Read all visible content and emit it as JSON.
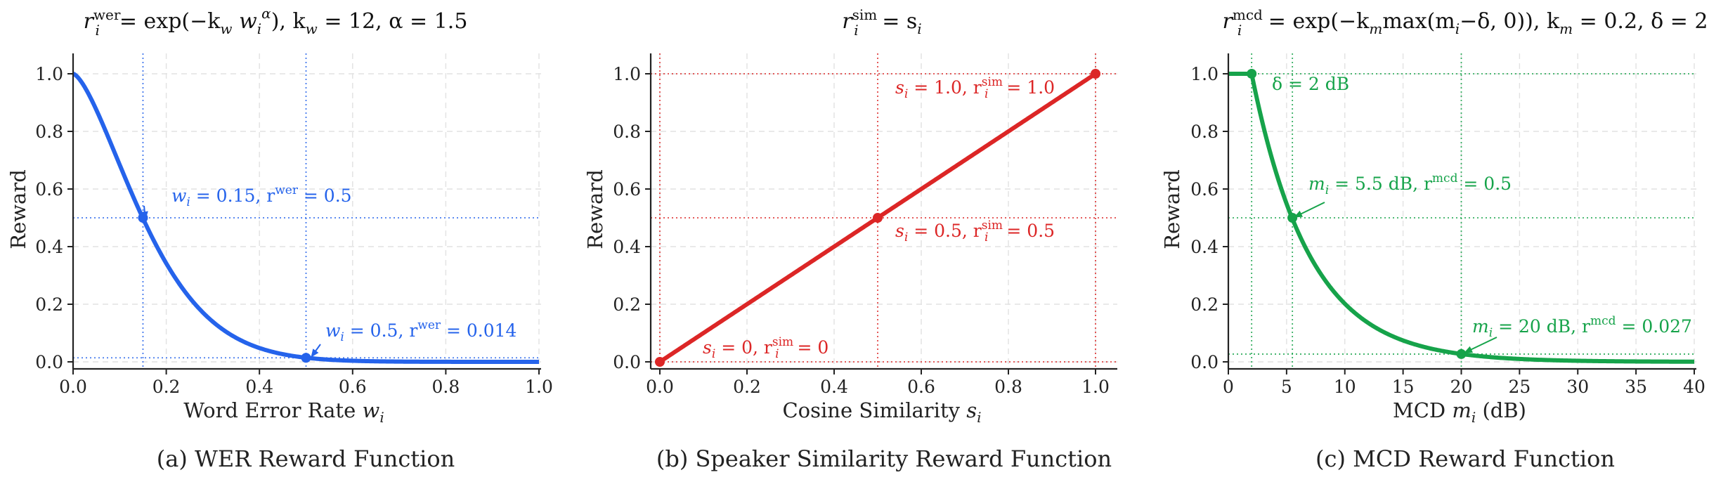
{
  "chart_data": [
    {
      "type": "line",
      "title": "r_i^wer = exp(−k_w w_i^α),  k_w = 12,  α = 1.5",
      "title_parts": {
        "lhs": "r",
        "lhs_sub": "i",
        "lhs_sup": "wer",
        "rhs": "= exp(−k",
        "k_sub": "w",
        "var": " w",
        "var_sub": "i",
        "exp_sup": "α",
        "params": "),  k",
        "params_sub": "w",
        "params_tail": " = 12,  α = 1.5"
      },
      "caption": "(a) WER Reward Function",
      "xlabel": "Word Error Rate",
      "xlabel_var": "w",
      "xlabel_sub": "i",
      "ylabel": "Reward",
      "xlim": [
        0,
        1.0
      ],
      "ylim": [
        0,
        1.0
      ],
      "xticks": [
        "0.0",
        "0.2",
        "0.4",
        "0.6",
        "0.8",
        "1.0"
      ],
      "yticks": [
        "0.0",
        "0.2",
        "0.4",
        "0.6",
        "0.8",
        "1.0"
      ],
      "color": "#2563eb",
      "function": {
        "form": "exp_power",
        "k": 12,
        "alpha": 1.5
      },
      "points": [
        {
          "x": 0.15,
          "y": 0.5,
          "label_a": "w",
          "label_a_sub": "i",
          "label_b": " = 0.15,  r",
          "label_b_sup": "wer",
          "label_c": " = 0.5"
        },
        {
          "x": 0.5,
          "y": 0.014,
          "label_a": "w",
          "label_a_sub": "i",
          "label_b": " = 0.5,  r",
          "label_b_sup": "wer",
          "label_c": " = 0.014"
        }
      ],
      "grid": true
    },
    {
      "type": "line",
      "title": "r_i^sim = s_i",
      "title_parts": {
        "lhs": "r",
        "lhs_sub": "i",
        "lhs_sup": "sim",
        "rhs": " = s",
        "rhs_sub": "i"
      },
      "caption": "(b) Speaker Similarity Reward Function",
      "xlabel": "Cosine Similarity",
      "xlabel_var": "s",
      "xlabel_sub": "i",
      "ylabel": "Reward",
      "xlim": [
        0,
        1.0
      ],
      "ylim": [
        0,
        1.0
      ],
      "xticks": [
        "0.0",
        "0.2",
        "0.4",
        "0.6",
        "0.8",
        "1.0"
      ],
      "yticks": [
        "0.0",
        "0.2",
        "0.4",
        "0.6",
        "0.8",
        "1.0"
      ],
      "color": "#dc2626",
      "function": {
        "form": "identity"
      },
      "points": [
        {
          "x": 0,
          "y": 0,
          "label_a": "s",
          "label_a_sub": "i",
          "label_b": " = 0,  r",
          "label_b_sup": "sim",
          "label_b_sub": "i",
          "label_c": " = 0"
        },
        {
          "x": 0.5,
          "y": 0.5,
          "label_a": "s",
          "label_a_sub": "i",
          "label_b": " = 0.5,  r",
          "label_b_sup": "sim",
          "label_b_sub": "i",
          "label_c": " = 0.5"
        },
        {
          "x": 1.0,
          "y": 1.0,
          "label_a": "s",
          "label_a_sub": "i",
          "label_b": " = 1.0,  r",
          "label_b_sup": "sim",
          "label_b_sub": "i",
          "label_c": " = 1.0"
        }
      ],
      "grid": true
    },
    {
      "type": "line",
      "title": "r_i^mcd = exp(−k_m max(m_i − δ, 0)),  k_m = 0.2,  δ = 2",
      "title_parts": {
        "lhs": "r",
        "lhs_sub": "i",
        "lhs_sup": "mcd",
        "rhs": " = exp(−k",
        "k_sub": "m",
        "mid": "max(m",
        "mid_sub": "i",
        "tail": "−δ, 0)),  k",
        "tail_sub": "m",
        "params_tail": " = 0.2,  δ = 2"
      },
      "caption": "(c) MCD Reward Function",
      "xlabel": "MCD",
      "xlabel_var": "m",
      "xlabel_sub": "i",
      "xlabel_unit": " (dB)",
      "ylabel": "Reward",
      "xlim": [
        0,
        40
      ],
      "ylim": [
        0,
        1.0
      ],
      "xticks": [
        "0",
        "5",
        "10",
        "15",
        "20",
        "25",
        "30",
        "35",
        "40"
      ],
      "yticks": [
        "0.0",
        "0.2",
        "0.4",
        "0.6",
        "0.8",
        "1.0"
      ],
      "color": "#16a34a",
      "function": {
        "form": "exp_hinge",
        "k": 0.2,
        "delta": 2
      },
      "points": [
        {
          "x": 2,
          "y": 1.0,
          "label_a": "δ = 2 dB"
        },
        {
          "x": 5.5,
          "y": 0.5,
          "label_a": "m",
          "label_a_sub": "i",
          "label_b": " = 5.5 dB,  r",
          "label_b_sup": "mcd",
          "label_c": " = 0.5"
        },
        {
          "x": 20,
          "y": 0.027,
          "label_a": "m",
          "label_a_sub": "i",
          "label_b": " = 20 dB,  r",
          "label_b_sup": "mcd",
          "label_c": " = 0.027"
        }
      ],
      "grid": true
    }
  ]
}
